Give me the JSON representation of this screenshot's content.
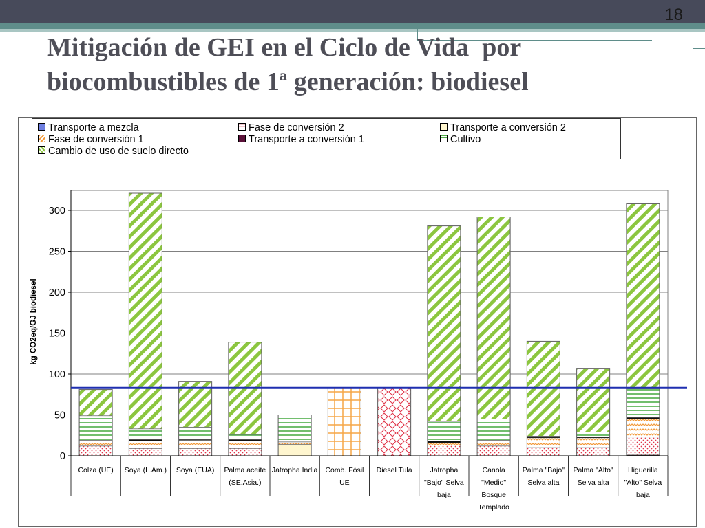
{
  "slide": {
    "page_number": "18",
    "title_line1": "Mitigación de GEI en el Ciclo de Vida  por",
    "title_line2": "biocombustibles de 1ª generación: biodiesel"
  },
  "legend": [
    {
      "key": "transporte_mezcla",
      "label": "Transporte a mezcla",
      "pattern": "solid-blue"
    },
    {
      "key": "fase_conversion_2",
      "label": "Fase de conversión 2",
      "pattern": "dots-red"
    },
    {
      "key": "transporte_conversion_2",
      "label": "Transporte a conversión 2",
      "pattern": "solid-cream"
    },
    {
      "key": "fase_conversion_1",
      "label": "Fase de conversión 1",
      "pattern": "zigzag-orange"
    },
    {
      "key": "transporte_conversion_1",
      "label": "Transporte a conversión 1",
      "pattern": "solid-dark"
    },
    {
      "key": "cultivo",
      "label": "Cultivo",
      "pattern": "hlines-green"
    },
    {
      "key": "cambio_uso_suelo",
      "label": "Cambio de uso de suelo directo",
      "pattern": "diag-green"
    }
  ],
  "chart_data": {
    "type": "bar",
    "stacked": true,
    "title": "",
    "xlabel": "",
    "ylabel": "kg CO2eq/GJ biodiesel",
    "ylim": [
      0,
      320
    ],
    "yticks": [
      0,
      50,
      100,
      150,
      200,
      250,
      300
    ],
    "reference_line": {
      "value": 83,
      "color": "#1f2fb0",
      "description": "diesel fósil"
    },
    "categories": [
      [
        "Colza (UE)"
      ],
      [
        "Soya (L.Am.)"
      ],
      [
        "Soya (EUA)"
      ],
      [
        "Palma aceite",
        "(SE.Asia.)"
      ],
      [
        "Jatropha India"
      ],
      [
        "Comb. Fósil",
        "UE"
      ],
      [
        "Diesel Tula"
      ],
      [
        "Jatropha",
        "\"Bajo\" Selva",
        "baja"
      ],
      [
        "Canola",
        "\"Medio\"",
        "Bosque",
        "Templado"
      ],
      [
        "Palma \"Bajo\"",
        "Selva alta"
      ],
      [
        "Palma \"Alto\"",
        "Selva alta"
      ],
      [
        "Higuerilla",
        "\"Alto\" Selva",
        "baja"
      ]
    ],
    "bars": [
      [
        {
          "pattern": "dots-red",
          "value": 12
        },
        {
          "pattern": "zigzag-orange",
          "value": 7
        },
        {
          "pattern": "hlines-green",
          "value": 30
        },
        {
          "pattern": "diag-green",
          "value": 32
        }
      ],
      [
        {
          "pattern": "dots-red",
          "value": 9
        },
        {
          "pattern": "zigzag-orange",
          "value": 9
        },
        {
          "pattern": "solid-dark",
          "value": 2
        },
        {
          "pattern": "hlines-green",
          "value": 13
        },
        {
          "pattern": "diag-green",
          "value": 288
        }
      ],
      [
        {
          "pattern": "dots-red",
          "value": 9
        },
        {
          "pattern": "zigzag-orange",
          "value": 10
        },
        {
          "pattern": "solid-dark",
          "value": 1
        },
        {
          "pattern": "hlines-green",
          "value": 15
        },
        {
          "pattern": "diag-green",
          "value": 56
        }
      ],
      [
        {
          "pattern": "dots-red",
          "value": 9
        },
        {
          "pattern": "zigzag-orange",
          "value": 9
        },
        {
          "pattern": "solid-dark",
          "value": 2
        },
        {
          "pattern": "hlines-green",
          "value": 6
        },
        {
          "pattern": "diag-green",
          "value": 113
        }
      ],
      [
        {
          "pattern": "solid-cream",
          "value": 14
        },
        {
          "pattern": "zigzag-orange",
          "value": 3
        },
        {
          "pattern": "hlines-green",
          "value": 33
        }
      ],
      [
        {
          "pattern": "grid-orange",
          "value": 83
        }
      ],
      [
        {
          "pattern": "diamond-red",
          "value": 83
        }
      ],
      [
        {
          "pattern": "dots-red",
          "value": 13
        },
        {
          "pattern": "zigzag-orange",
          "value": 3
        },
        {
          "pattern": "solid-dark",
          "value": 2
        },
        {
          "pattern": "hlines-green",
          "value": 24
        },
        {
          "pattern": "diag-green",
          "value": 239
        }
      ],
      [
        {
          "pattern": "dots-red",
          "value": 12
        },
        {
          "pattern": "zigzag-orange",
          "value": 7
        },
        {
          "pattern": "hlines-green",
          "value": 26
        },
        {
          "pattern": "diag-green",
          "value": 247
        }
      ],
      [
        {
          "pattern": "dots-red",
          "value": 10
        },
        {
          "pattern": "zigzag-orange",
          "value": 12
        },
        {
          "pattern": "solid-dark",
          "value": 2
        },
        {
          "pattern": "diag-green",
          "value": 116
        }
      ],
      [
        {
          "pattern": "dots-red",
          "value": 10
        },
        {
          "pattern": "zigzag-orange",
          "value": 12
        },
        {
          "pattern": "solid-dark",
          "value": 1
        },
        {
          "pattern": "hlines-green",
          "value": 6
        },
        {
          "pattern": "diag-green",
          "value": 78
        }
      ],
      [
        {
          "pattern": "solid-dark",
          "value": 1
        },
        {
          "pattern": "dots-red",
          "value": 22
        },
        {
          "pattern": "zigzag-orange",
          "value": 22
        },
        {
          "pattern": "solid-dark",
          "value": 2
        },
        {
          "pattern": "hlines-green",
          "value": 35
        },
        {
          "pattern": "diag-green",
          "value": 226
        }
      ]
    ]
  },
  "colors": {
    "title": "#4e4e57",
    "top_bar": "#474a5a",
    "accent_teal": "#5f8d8a",
    "reference_line": "#1f2fb0",
    "green_pattern": "#8cc63f"
  }
}
